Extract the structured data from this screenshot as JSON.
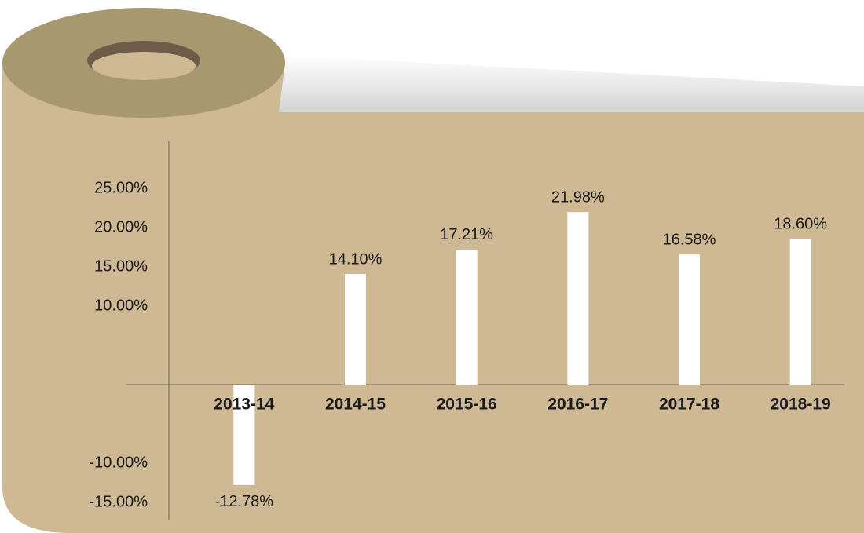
{
  "chart_data": {
    "type": "bar",
    "categories": [
      "2013-14",
      "2014-15",
      "2015-16",
      "2016-17",
      "2017-18",
      "2018-19"
    ],
    "values": [
      -12.78,
      14.1,
      17.21,
      21.98,
      16.58,
      18.6
    ],
    "value_labels": [
      "-12.78%",
      "14.10%",
      "17.21%",
      "21.98%",
      "16.58%",
      "18.60%"
    ],
    "color": "#ffffff",
    "ylim": [
      -17,
      30
    ],
    "yticks": [
      {
        "value": -15,
        "label": "-15.00%"
      },
      {
        "value": -10,
        "label": "-10.00%"
      },
      {
        "value": 10,
        "label": "10.00%"
      },
      {
        "value": 15,
        "label": "15.00%"
      },
      {
        "value": 20,
        "label": "20.00%"
      },
      {
        "value": 25,
        "label": "25.00%"
      }
    ]
  }
}
